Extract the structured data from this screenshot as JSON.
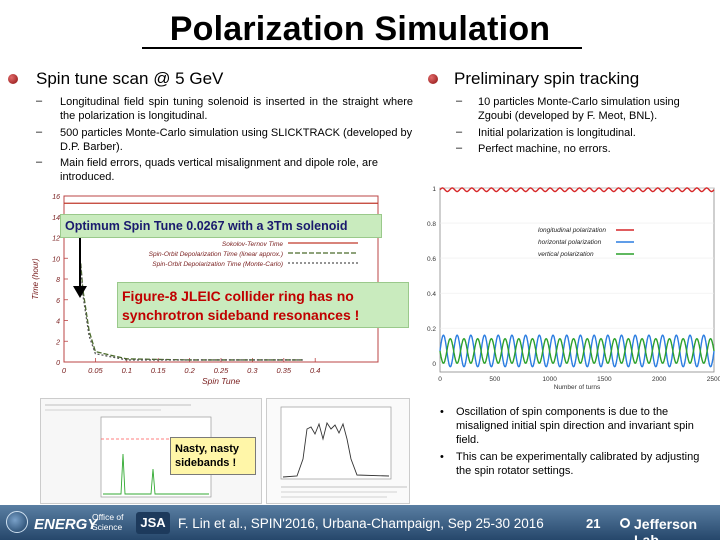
{
  "slide": {
    "title": "Polarization Simulation",
    "left": {
      "heading": "Spin tune scan @ 5 GeV",
      "bullets": [
        "Longitudinal field spin tuning solenoid is inserted in the straight where the polarization is longitudinal.",
        "500 particles Monte-Carlo simulation using SLICKTRACK (developed by D.P. Barber).",
        "Main field errors, quads vertical misalignment and dipole role, are introduced."
      ]
    },
    "right": {
      "heading": "Preliminary spin tracking",
      "bullets": [
        "10 particles Monte-Carlo simulation using Zgoubi (developed by F. Meot, BNL).",
        "Initial polarization is longitudinal.",
        "Perfect machine, no errors."
      ],
      "bottom_bullets": [
        "Oscillation of spin components is due to the misaligned initial spin direction and invariant spin field.",
        "This can be experimentally calibrated by adjusting the spin rotator settings."
      ]
    },
    "callouts": {
      "optimum": "Optimum Spin Tune 0.0267 with a 3Tm solenoid",
      "figure8": "Figure-8 JLEIC collider ring has no synchrotron sideband resonances !",
      "nasty": "Nasty, nasty sidebands !"
    },
    "footer": {
      "citation": "F. Lin et al., SPIN'2016, Urbana-Champaign, Sep 25-30 2016",
      "page": "21",
      "doe": "ENERGY",
      "doe_sub": "Office of Science",
      "jlab": "Jefferson Lab"
    }
  },
  "chart_data": [
    {
      "type": "line",
      "xlabel": "Spin Tune",
      "ylabel": "Time (hour)",
      "xlim": [
        0,
        0.5
      ],
      "ylim": [
        0,
        16
      ],
      "x_ticks": [
        "0",
        "0.05",
        "0.1",
        "0.15",
        "0.2",
        "0.25",
        "0.3",
        "0.35",
        "0.4"
      ],
      "y_ticks": [
        "0",
        "2",
        "4",
        "6",
        "8",
        "10",
        "12",
        "14",
        "16"
      ],
      "legend": [
        "Sokolov-Ternov Time",
        "Spin-Orbit Depolarization Time (linear approx.)",
        "Spin-Orbit Depolarization Time (Monte-Carlo)"
      ],
      "series": [
        {
          "name": "Sokolov-Ternov Time",
          "x": [
            0.0,
            0.5
          ],
          "y": [
            15.3,
            15.3
          ]
        },
        {
          "name": "Spin-Orbit Depolarization Time (linear approx.)",
          "x": [
            0.0267,
            0.03,
            0.04,
            0.05,
            0.1,
            0.2,
            0.3,
            0.38
          ],
          "y": [
            9.5,
            7.0,
            3.0,
            1.0,
            0.3,
            0.2,
            0.2,
            0.2
          ]
        },
        {
          "name": "Spin-Orbit Depolarization Time (Monte-Carlo)",
          "x": [
            0.0267,
            0.03,
            0.04,
            0.05,
            0.1,
            0.2,
            0.3,
            0.38
          ],
          "y": [
            9.3,
            6.5,
            2.5,
            0.8,
            0.2,
            0.2,
            0.2,
            0.2
          ]
        }
      ]
    },
    {
      "type": "line",
      "xlabel": "Number of turns",
      "ylabel": "",
      "xlim": [
        0,
        2500
      ],
      "ylim": [
        -0.05,
        1
      ],
      "x_ticks": [
        "0",
        "500",
        "1000",
        "1500",
        "2000",
        "2500"
      ],
      "y_ticks": [
        "0",
        "0.2",
        "0.4",
        "0.6",
        "0.8",
        "1"
      ],
      "legend": [
        "longitudinal polarization",
        "horizontal polarization",
        "vertical polarization"
      ],
      "series": [
        {
          "name": "longitudinal polarization",
          "mean": 0.99,
          "amplitude": 0.01,
          "periods": 28
        },
        {
          "name": "horizontal polarization",
          "mean": 0.07,
          "amplitude": 0.09,
          "periods": 20
        },
        {
          "name": "vertical polarization",
          "mean": 0.07,
          "amplitude": 0.07,
          "periods": 20
        }
      ]
    }
  ]
}
